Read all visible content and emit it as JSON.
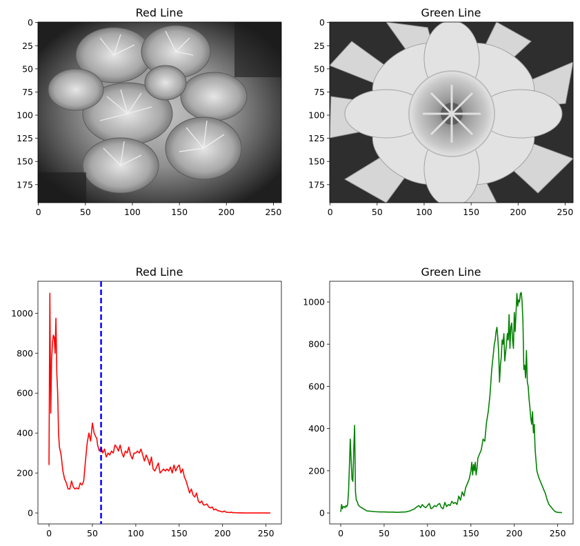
{
  "figure": {
    "panels": [
      {
        "title": "Red Line"
      },
      {
        "title": "Green Line"
      },
      {
        "title": "Red Line"
      },
      {
        "title": "Green Line"
      }
    ]
  },
  "chart_data": [
    {
      "type": "image",
      "title": "Red Line",
      "description_colormap": "gray",
      "x_ticks": [
        "0",
        "50",
        "100",
        "150",
        "200",
        "250"
      ],
      "y_ticks": [
        "0",
        "25",
        "50",
        "75",
        "100",
        "125",
        "150",
        "175"
      ],
      "xlim": [
        -0.5,
        258.5
      ],
      "ylim": [
        194.5,
        -0.5
      ]
    },
    {
      "type": "image",
      "title": "Green Line",
      "description_colormap": "gray",
      "x_ticks": [
        "0",
        "50",
        "100",
        "150",
        "200",
        "250"
      ],
      "y_ticks": [
        "0",
        "25",
        "50",
        "75",
        "100",
        "125",
        "150",
        "175"
      ],
      "xlim": [
        -0.5,
        258.5
      ],
      "ylim": [
        194.5,
        -0.5
      ]
    },
    {
      "type": "line",
      "title": "Red Line",
      "xlim": [
        -12.75,
        267.75
      ],
      "ylim": [
        -55,
        1160
      ],
      "x_ticks": [
        0,
        50,
        100,
        150,
        200,
        250
      ],
      "y_ticks": [
        0,
        200,
        400,
        600,
        800,
        1000
      ],
      "series": [
        {
          "color": "#ff0000",
          "x": [
            0,
            1,
            2,
            3,
            4,
            5,
            6,
            7,
            8,
            9,
            10,
            11,
            12,
            14,
            16,
            18,
            20,
            22,
            24,
            26,
            28,
            30,
            32,
            34,
            36,
            38,
            40,
            42,
            44,
            46,
            48,
            50,
            52,
            54,
            55,
            56,
            58,
            60,
            62,
            64,
            66,
            68,
            70,
            72,
            74,
            76,
            78,
            80,
            82,
            84,
            86,
            88,
            90,
            92,
            94,
            96,
            98,
            100,
            102,
            104,
            106,
            108,
            110,
            112,
            114,
            116,
            118,
            120,
            122,
            124,
            126,
            128,
            130,
            132,
            134,
            136,
            138,
            140,
            142,
            144,
            146,
            148,
            150,
            152,
            154,
            156,
            158,
            160,
            162,
            164,
            166,
            168,
            170,
            172,
            174,
            176,
            178,
            180,
            182,
            184,
            186,
            188,
            190,
            192,
            194,
            196,
            198,
            200,
            202,
            204,
            206,
            208,
            210,
            212,
            214,
            216,
            218,
            220,
            222,
            224,
            226,
            228,
            230,
            235,
            240,
            245,
            250,
            255
          ],
          "y": [
            240,
            1100,
            500,
            770,
            850,
            890,
            880,
            800,
            975,
            700,
            600,
            400,
            330,
            290,
            210,
            170,
            150,
            120,
            120,
            160,
            130,
            120,
            125,
            120,
            150,
            140,
            160,
            260,
            350,
            400,
            360,
            450,
            400,
            380,
            375,
            340,
            310,
            330,
            300,
            320,
            280,
            300,
            290,
            310,
            300,
            340,
            330,
            310,
            340,
            300,
            280,
            310,
            300,
            330,
            290,
            270,
            300,
            300,
            310,
            300,
            320,
            290,
            260,
            290,
            270,
            240,
            280,
            220,
            210,
            230,
            250,
            200,
            210,
            220,
            210,
            220,
            210,
            230,
            200,
            240,
            210,
            230,
            240,
            200,
            220,
            180,
            160,
            130,
            100,
            120,
            90,
            80,
            100,
            60,
            50,
            60,
            40,
            40,
            45,
            30,
            25,
            30,
            15,
            20,
            12,
            10,
            8,
            5,
            10,
            4,
            3,
            2,
            4,
            1,
            2,
            1,
            1,
            0,
            1,
            0,
            0,
            0,
            0,
            0,
            0,
            0,
            0,
            0
          ],
          "vline": {
            "x": 60,
            "color": "#0000ff",
            "style": "dashed"
          }
        }
      ]
    },
    {
      "type": "line",
      "title": "Green Line",
      "xlim": [
        -12.75,
        267.75
      ],
      "ylim": [
        -52,
        1098
      ],
      "x_ticks": [
        0,
        50,
        100,
        150,
        200,
        250
      ],
      "y_ticks": [
        0,
        200,
        400,
        600,
        800,
        1000
      ],
      "series": [
        {
          "color": "#008000",
          "x": [
            0,
            1,
            2,
            3,
            4,
            5,
            6,
            7,
            8,
            9,
            10,
            11,
            12,
            13,
            14,
            15,
            16,
            17,
            18,
            19,
            20,
            22,
            24,
            26,
            28,
            30,
            35,
            40,
            45,
            50,
            55,
            60,
            65,
            70,
            75,
            80,
            85,
            88,
            90,
            92,
            94,
            96,
            98,
            100,
            102,
            104,
            106,
            108,
            110,
            112,
            114,
            116,
            118,
            120,
            122,
            124,
            126,
            128,
            130,
            132,
            134,
            136,
            138,
            140,
            142,
            144,
            146,
            148,
            150,
            151,
            152,
            153,
            154,
            155,
            156,
            157,
            158,
            160,
            162,
            164,
            166,
            168,
            170,
            172,
            174,
            176,
            177,
            178,
            179,
            180,
            181,
            182,
            183,
            184,
            185,
            186,
            187,
            188,
            189,
            190,
            191,
            192,
            193,
            194,
            195,
            196,
            197,
            198,
            199,
            200,
            201,
            202,
            203,
            204,
            205,
            206,
            207,
            208,
            209,
            210,
            211,
            212,
            213,
            214,
            215,
            216,
            217,
            218,
            219,
            220,
            221,
            222,
            223,
            224,
            225,
            226,
            228,
            230,
            232,
            234,
            236,
            238,
            240,
            242,
            244,
            246,
            248,
            250,
            252,
            254,
            255
          ],
          "y": [
            5,
            40,
            20,
            30,
            30,
            25,
            35,
            30,
            40,
            100,
            220,
            350,
            250,
            160,
            150,
            300,
            415,
            100,
            60,
            55,
            40,
            30,
            25,
            20,
            15,
            10,
            8,
            6,
            5,
            5,
            4,
            4,
            3,
            4,
            5,
            10,
            20,
            30,
            35,
            25,
            40,
            30,
            25,
            35,
            45,
            20,
            25,
            35,
            30,
            40,
            45,
            25,
            20,
            50,
            30,
            40,
            35,
            55,
            45,
            50,
            40,
            80,
            60,
            100,
            80,
            120,
            140,
            160,
            200,
            240,
            180,
            230,
            200,
            240,
            180,
            210,
            260,
            280,
            300,
            350,
            340,
            430,
            480,
            560,
            680,
            760,
            800,
            820,
            860,
            880,
            830,
            760,
            620,
            700,
            740,
            820,
            800,
            850,
            720,
            760,
            800,
            850,
            820,
            940,
            780,
            880,
            900,
            820,
            780,
            950,
            860,
            950,
            1040,
            980,
            1010,
            1000,
            1040,
            1045,
            1000,
            900,
            680,
            700,
            640,
            770,
            620,
            600,
            540,
            500,
            450,
            420,
            480,
            380,
            420,
            300,
            250,
            200,
            170,
            150,
            130,
            110,
            90,
            60,
            40,
            30,
            20,
            10,
            5,
            3,
            2,
            2,
            2
          ]
        }
      ]
    }
  ]
}
